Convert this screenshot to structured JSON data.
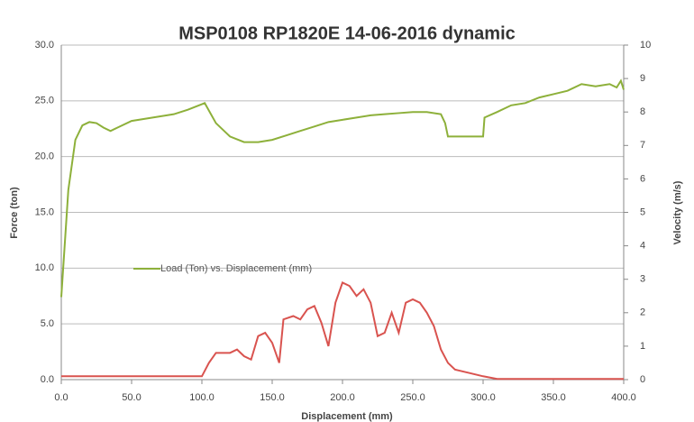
{
  "chart_data": {
    "type": "line",
    "title": "MSP0108 RP1820E 14-06-2016 dynamic",
    "x_label": "Displacement (mm)",
    "y_label": "Force (ton)",
    "y2_label": "Velocity (m/s)",
    "xlim": [
      0,
      400
    ],
    "xticks": [
      {
        "value": 0,
        "label": "0.0"
      },
      {
        "value": 50,
        "label": "50.0"
      },
      {
        "value": 100,
        "label": "100.0"
      },
      {
        "value": 150,
        "label": "150.0"
      },
      {
        "value": 200,
        "label": "200.0"
      },
      {
        "value": 250,
        "label": "250.0"
      },
      {
        "value": 300,
        "label": "300.0"
      },
      {
        "value": 350,
        "label": "350.0"
      },
      {
        "value": 400,
        "label": "400.0"
      }
    ],
    "ylim": [
      0,
      30
    ],
    "yticks": [
      {
        "value": 0,
        "label": "0.0"
      },
      {
        "value": 5,
        "label": "5.0"
      },
      {
        "value": 10,
        "label": "10.0"
      },
      {
        "value": 15,
        "label": "15.0"
      },
      {
        "value": 20,
        "label": "20.0"
      },
      {
        "value": 25,
        "label": "25.0"
      },
      {
        "value": 30,
        "label": "30.0"
      }
    ],
    "y2lim": [
      0,
      10
    ],
    "y2ticks": [
      0,
      1,
      2,
      3,
      4,
      5,
      6,
      7,
      8,
      9,
      10
    ],
    "grid": true,
    "series": [
      {
        "name": "Load (Ton) vs. Displacement (mm)",
        "color": "#8db03a",
        "x": [
          0,
          5,
          10,
          15,
          20,
          25,
          30,
          35,
          40,
          50,
          60,
          70,
          80,
          90,
          100,
          102,
          110,
          120,
          130,
          140,
          150,
          160,
          170,
          180,
          190,
          200,
          210,
          220,
          230,
          240,
          250,
          260,
          270,
          273,
          275,
          300,
          301,
          310,
          320,
          330,
          340,
          350,
          360,
          370,
          380,
          390,
          395,
          398,
          400
        ],
        "values": [
          7.4,
          17,
          21.5,
          22.8,
          23.1,
          23,
          22.6,
          22.3,
          22.6,
          23.2,
          23.4,
          23.6,
          23.8,
          24.2,
          24.7,
          24.8,
          23,
          21.8,
          21.3,
          21.3,
          21.5,
          21.9,
          22.3,
          22.7,
          23.1,
          23.3,
          23.5,
          23.7,
          23.8,
          23.9,
          24,
          24,
          23.8,
          23,
          21.8,
          21.8,
          23.5,
          24,
          24.6,
          24.8,
          25.3,
          25.6,
          25.9,
          26.5,
          26.3,
          26.5,
          26.2,
          26.8,
          26
        ]
      },
      {
        "color": "#d9534f",
        "axis": "y2",
        "x": [
          0,
          50,
          100,
          105,
          110,
          120,
          125,
          130,
          135,
          140,
          145,
          150,
          155,
          158,
          165,
          170,
          175,
          180,
          185,
          190,
          195,
          200,
          205,
          210,
          215,
          220,
          225,
          230,
          235,
          240,
          245,
          250,
          255,
          260,
          265,
          270,
          275,
          280,
          290,
          300,
          310,
          350,
          400
        ],
        "values": [
          0.1,
          0.1,
          0.1,
          0.5,
          0.8,
          0.8,
          0.9,
          0.7,
          0.6,
          1.3,
          1.4,
          1.1,
          0.5,
          1.8,
          1.9,
          1.8,
          2.1,
          2.2,
          1.7,
          1.0,
          2.3,
          2.9,
          2.8,
          2.5,
          2.7,
          2.3,
          1.3,
          1.4,
          2.0,
          1.4,
          2.3,
          2.4,
          2.3,
          2.0,
          1.6,
          0.9,
          0.5,
          0.3,
          0.2,
          0.1,
          0.02,
          0.02,
          0.02
        ]
      }
    ]
  }
}
